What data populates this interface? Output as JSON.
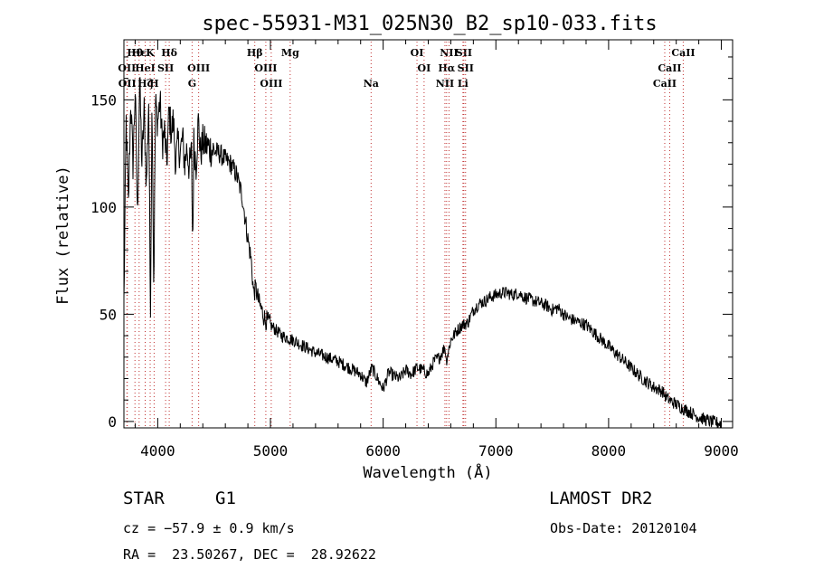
{
  "chart_data": {
    "type": "line",
    "title": "spec-55931-M31_025N30_B2_sp10-033.fits",
    "xlabel": "Wavelength (Å)",
    "ylabel": "Flux (relative)",
    "xlim": [
      3700,
      9100
    ],
    "ylim": [
      -3,
      178
    ],
    "x_ticks": [
      4000,
      5000,
      6000,
      7000,
      8000,
      9000
    ],
    "y_ticks": [
      0,
      50,
      100,
      150
    ],
    "grid": false,
    "series": [
      {
        "color": "#000000",
        "x": [
          3700,
          3720,
          3740,
          3760,
          3780,
          3800,
          3820,
          3840,
          3860,
          3880,
          3900,
          3920,
          3935,
          3950,
          3965,
          3980,
          4000,
          4020,
          4040,
          4060,
          4080,
          4100,
          4120,
          4140,
          4160,
          4180,
          4200,
          4220,
          4240,
          4260,
          4280,
          4300,
          4310,
          4320,
          4340,
          4360,
          4380,
          4400,
          4450,
          4500,
          4550,
          4600,
          4650,
          4700,
          4750,
          4800,
          4830,
          4850,
          4870,
          4900,
          4950,
          5000,
          5100,
          5200,
          5300,
          5400,
          5500,
          5600,
          5700,
          5800,
          5850,
          5900,
          5950,
          6000,
          6050,
          6100,
          6150,
          6200,
          6250,
          6300,
          6350,
          6400,
          6450,
          6500,
          6550,
          6560,
          6600,
          6650,
          6700,
          6750,
          6800,
          6850,
          6900,
          6950,
          7000,
          7050,
          7100,
          7150,
          7200,
          7250,
          7300,
          7350,
          7400,
          7450,
          7500,
          7550,
          7600,
          7650,
          7700,
          7800,
          7900,
          8000,
          8100,
          8200,
          8300,
          8400,
          8480,
          8500,
          8540,
          8600,
          8660,
          8700,
          8800,
          8900,
          9000
        ],
        "y": [
          55,
          140,
          100,
          150,
          120,
          155,
          95,
          160,
          120,
          145,
          110,
          150,
          50,
          155,
          60,
          148,
          140,
          150,
          130,
          135,
          120,
          145,
          135,
          140,
          120,
          130,
          125,
          132,
          120,
          128,
          118,
          125,
          80,
          130,
          120,
          140,
          125,
          130,
          128,
          126,
          125,
          122,
          120,
          115,
          105,
          85,
          75,
          60,
          62,
          55,
          48,
          45,
          40,
          38,
          35,
          32,
          30,
          28,
          25,
          22,
          18,
          25,
          20,
          15,
          23,
          21,
          20,
          24,
          22,
          25,
          24,
          22,
          28,
          30,
          35,
          28,
          38,
          42,
          45,
          46,
          52,
          55,
          56,
          58,
          59,
          60,
          60,
          59,
          60,
          58,
          57,
          56,
          55,
          54,
          52,
          53,
          50,
          48,
          47,
          45,
          40,
          35,
          30,
          25,
          20,
          16,
          14,
          12,
          10,
          8,
          6,
          5,
          2,
          0,
          -1
        ]
      }
    ],
    "lines": [
      {
        "name": "Hθ",
        "x": 3798,
        "row": 0
      },
      {
        "name": "Hε",
        "x": 3835,
        "row": 0
      },
      {
        "name": "K",
        "x": 3933,
        "row": 0
      },
      {
        "name": "Hδ",
        "x": 4102,
        "row": 0
      },
      {
        "name": "Hβ",
        "x": 4861,
        "row": 0
      },
      {
        "name": "Mg",
        "x": 5175,
        "row": 0
      },
      {
        "name": "OI",
        "x": 6300,
        "row": 0
      },
      {
        "name": "NII",
        "x": 6584,
        "row": 0
      },
      {
        "name": "SII",
        "x": 6716,
        "row": 0
      },
      {
        "name": "CaII",
        "x": 8662,
        "row": 0
      },
      {
        "name": "OII",
        "x": 3727,
        "row": 1
      },
      {
        "name": "HeI",
        "x": 3889,
        "row": 1
      },
      {
        "name": "SII",
        "x": 4070,
        "row": 1
      },
      {
        "name": "OIII",
        "x": 4363,
        "row": 1
      },
      {
        "name": "OIII",
        "x": 4959,
        "row": 1
      },
      {
        "name": "OI",
        "x": 6363,
        "row": 1
      },
      {
        "name": "Hα",
        "x": 6563,
        "row": 1
      },
      {
        "name": "SII",
        "x": 6731,
        "row": 1
      },
      {
        "name": "CaII",
        "x": 8542,
        "row": 1
      },
      {
        "name": "OII",
        "x": 3730,
        "row": 2
      },
      {
        "name": "Hζ",
        "x": 3889,
        "row": 2
      },
      {
        "name": "H",
        "x": 3968,
        "row": 2
      },
      {
        "name": "G",
        "x": 4305,
        "row": 2
      },
      {
        "name": "OIII",
        "x": 5007,
        "row": 2
      },
      {
        "name": "Na",
        "x": 5893,
        "row": 2
      },
      {
        "name": "NII",
        "x": 6548,
        "row": 2
      },
      {
        "name": "Li",
        "x": 6708,
        "row": 2
      },
      {
        "name": "CaII",
        "x": 8498,
        "row": 2
      }
    ]
  },
  "info": {
    "object_class": "STAR",
    "subclass": "G1",
    "survey": "LAMOST DR2",
    "cz": "cz = −57.9 ± 0.9 km/s",
    "obs_date": "Obs-Date: 20120104",
    "coords": "RA =  23.50267, DEC =  28.92622"
  }
}
